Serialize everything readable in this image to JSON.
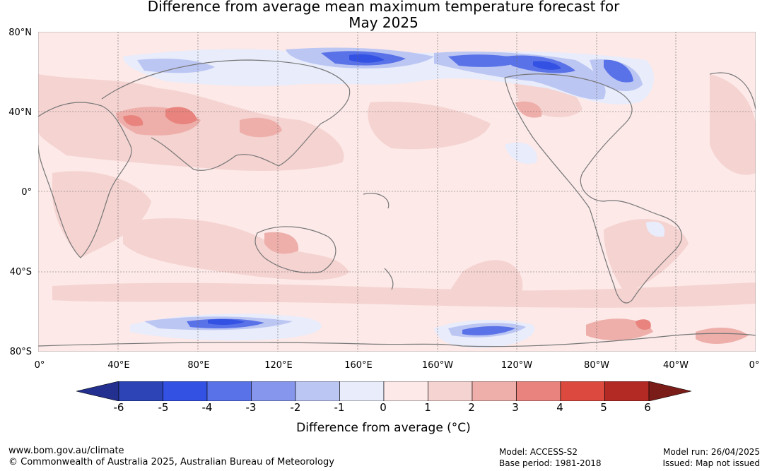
{
  "title_line1": "Difference from average mean maximum temperature forecast for",
  "title_line2": "May 2025",
  "lat_labels": [
    "80°N",
    "40°N",
    "0°",
    "40°S",
    "80°S"
  ],
  "lon_labels": [
    "0°",
    "40°E",
    "80°E",
    "120°E",
    "160°E",
    "160°W",
    "120°W",
    "80°W",
    "40°W",
    "0°"
  ],
  "colorbar": {
    "ticks": [
      "-6",
      "-5",
      "-4",
      "-3",
      "-2",
      "-1",
      "0",
      "1",
      "2",
      "3",
      "4",
      "5",
      "6"
    ],
    "colors": [
      "#23308f",
      "#2c44b5",
      "#3352e3",
      "#5a72e8",
      "#8696ec",
      "#bcc6f3",
      "#e8ecfb",
      "#fce9e8",
      "#f5d3d1",
      "#eeafaa",
      "#e8837d",
      "#dc4a3f",
      "#b32a24",
      "#7a1c18"
    ],
    "label": "Difference from average (°C)"
  },
  "footer": {
    "url": "www.bom.gov.au/climate",
    "copyright": "© Commonwealth of Australia 2025, Australian Bureau of Meteorology",
    "model": "Model: ACCESS-S2",
    "base_period": "Base period: 1981-2018",
    "model_run": "Model run: 26/04/2025",
    "issued": "Issued: Map not issued"
  }
}
